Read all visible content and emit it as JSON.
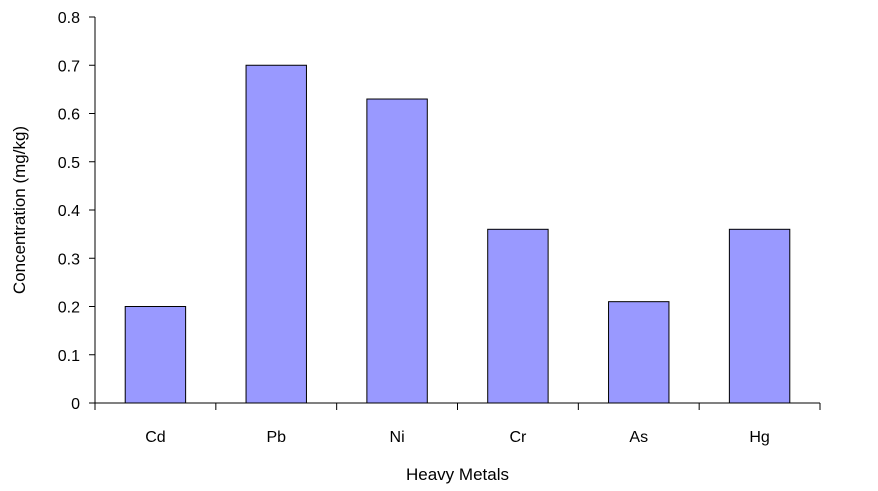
{
  "chart_data": {
    "type": "bar",
    "title": "",
    "xlabel": "Heavy Metals",
    "ylabel": "Concentration (mg/kg)",
    "categories": [
      "Cd",
      "Pb",
      "Ni",
      "Cr",
      "As",
      "Hg"
    ],
    "values": [
      0.2,
      0.7,
      0.63,
      0.36,
      0.21,
      0.36
    ],
    "ylim": [
      0,
      0.8
    ],
    "yticks": [
      "0",
      "0.1",
      "0.2",
      "0.3",
      "0.4",
      "0.5",
      "0.6",
      "0.7",
      "0.8"
    ],
    "grid": false,
    "legend": "none",
    "bar_color": "#9999FF",
    "bar_edge_color": "#000000"
  }
}
